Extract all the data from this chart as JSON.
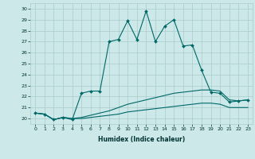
{
  "title": "",
  "xlabel": "Humidex (Indice chaleur)",
  "ylabel": "",
  "bg_color": "#cce8e8",
  "grid_color": "#aacccc",
  "line_color": "#006868",
  "xlim": [
    -0.5,
    23.5
  ],
  "ylim": [
    19.5,
    30.5
  ],
  "yticks": [
    20,
    21,
    22,
    23,
    24,
    25,
    26,
    27,
    28,
    29,
    30
  ],
  "xticks": [
    0,
    1,
    2,
    3,
    4,
    5,
    6,
    7,
    8,
    9,
    10,
    11,
    12,
    13,
    14,
    15,
    16,
    17,
    18,
    19,
    20,
    21,
    22,
    23
  ],
  "series": [
    {
      "x": [
        0,
        1,
        2,
        3,
        4,
        5,
        6,
        7,
        8,
        9,
        10,
        11,
        12,
        13,
        14,
        15,
        16,
        17,
        18,
        19,
        20,
        21,
        22,
        23
      ],
      "y": [
        20.5,
        20.4,
        19.9,
        20.1,
        19.9,
        22.3,
        22.5,
        22.5,
        27.0,
        27.2,
        28.9,
        27.2,
        29.8,
        27.0,
        28.4,
        29.0,
        26.6,
        26.7,
        24.4,
        22.4,
        22.3,
        21.5,
        21.6,
        21.7
      ],
      "marker": true
    },
    {
      "x": [
        0,
        1,
        2,
        3,
        4,
        5,
        6,
        7,
        8,
        9,
        10,
        11,
        12,
        13,
        14,
        15,
        16,
        17,
        18,
        19,
        20,
        21,
        22,
        23
      ],
      "y": [
        20.5,
        20.4,
        19.9,
        20.1,
        20.0,
        20.1,
        20.3,
        20.5,
        20.7,
        21.0,
        21.3,
        21.5,
        21.7,
        21.9,
        22.1,
        22.3,
        22.4,
        22.5,
        22.6,
        22.6,
        22.5,
        21.7,
        21.6,
        21.7
      ],
      "marker": false
    },
    {
      "x": [
        0,
        1,
        2,
        3,
        4,
        5,
        6,
        7,
        8,
        9,
        10,
        11,
        12,
        13,
        14,
        15,
        16,
        17,
        18,
        19,
        20,
        21,
        22,
        23
      ],
      "y": [
        20.5,
        20.4,
        19.9,
        20.1,
        20.0,
        20.0,
        20.1,
        20.2,
        20.3,
        20.4,
        20.6,
        20.7,
        20.8,
        20.9,
        21.0,
        21.1,
        21.2,
        21.3,
        21.4,
        21.4,
        21.3,
        21.0,
        21.0,
        21.0
      ],
      "marker": false
    }
  ],
  "figsize": [
    3.2,
    2.0
  ],
  "dpi": 100,
  "xlabel_fontsize": 5.5,
  "tick_fontsize": 4.5,
  "linewidth": 0.8,
  "marker_size": 2.0
}
